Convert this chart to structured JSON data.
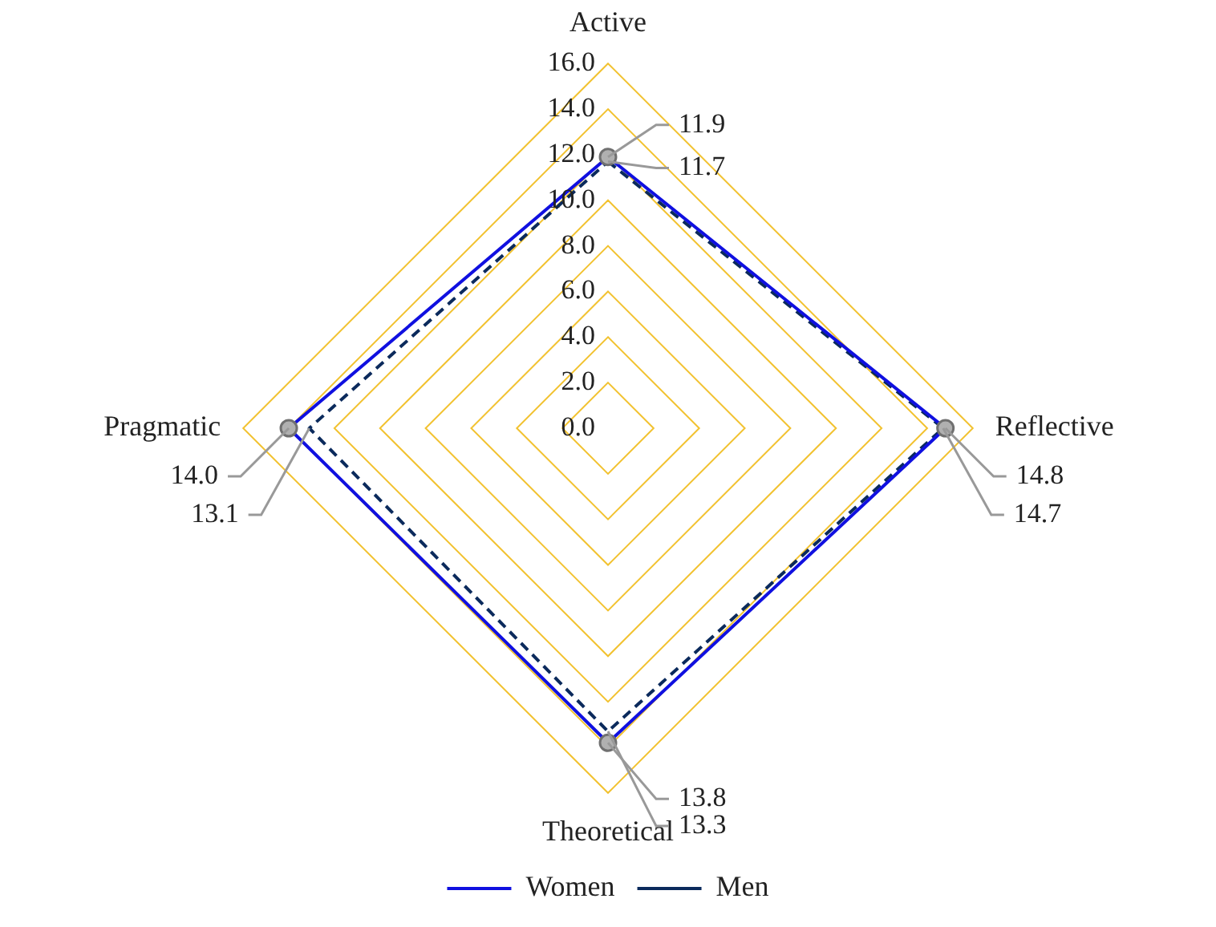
{
  "chart_data": {
    "type": "radar",
    "categories": [
      "Active",
      "Reflective",
      "Theoretical",
      "Pragmatic"
    ],
    "series": [
      {
        "name": "Women",
        "color": "#1010e0",
        "values": [
          11.9,
          14.8,
          13.8,
          14.0
        ],
        "value_labels": [
          "11.9",
          "14.8",
          "13.8",
          "14.0"
        ],
        "marker": "circle",
        "line_style": "solid"
      },
      {
        "name": "Men",
        "color": "#0b2a5c",
        "values": [
          11.7,
          14.7,
          13.3,
          13.1
        ],
        "value_labels": [
          "11.7",
          "14.7",
          "13.3",
          "13.1"
        ],
        "marker": "none",
        "line_style": "dashed"
      }
    ],
    "ylim": [
      0,
      16
    ],
    "yticks": [
      {
        "value": 0,
        "label": "0.0"
      },
      {
        "value": 2,
        "label": "2.0"
      },
      {
        "value": 4,
        "label": "4.0"
      },
      {
        "value": 6,
        "label": "6.0"
      },
      {
        "value": 8,
        "label": "8.0"
      },
      {
        "value": 10,
        "label": "10.0"
      },
      {
        "value": 12,
        "label": "12.0"
      },
      {
        "value": 14,
        "label": "14.0"
      },
      {
        "value": 16,
        "label": "16.0"
      }
    ],
    "grid": true,
    "legend": "bottom"
  }
}
